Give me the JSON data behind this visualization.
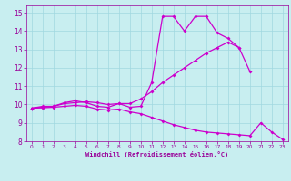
{
  "bg_color": "#c8eef0",
  "line_color": "#cc00cc",
  "grid_color": "#a0d8e0",
  "xlabel": "Windchill (Refroidissement éolien,°C)",
  "xlabel_color": "#990099",
  "tick_color": "#990099",
  "xlim": [
    -0.5,
    23.5
  ],
  "ylim": [
    8,
    15.4
  ],
  "yticks": [
    8,
    9,
    10,
    11,
    12,
    13,
    14,
    15
  ],
  "xticks": [
    0,
    1,
    2,
    3,
    4,
    5,
    6,
    7,
    8,
    9,
    10,
    11,
    12,
    13,
    14,
    15,
    16,
    17,
    18,
    19,
    20,
    21,
    22,
    23
  ],
  "line1_x": [
    0,
    1,
    2,
    3,
    4,
    5,
    6,
    7,
    8,
    9,
    10,
    11,
    12,
    13,
    14,
    15,
    16,
    17,
    18,
    19,
    20
  ],
  "line1_y": [
    9.8,
    9.9,
    9.9,
    10.1,
    10.2,
    10.1,
    9.9,
    9.85,
    10.05,
    9.85,
    9.9,
    11.2,
    14.8,
    14.8,
    14.0,
    14.8,
    14.8,
    13.9,
    13.6,
    13.1,
    11.8
  ],
  "line2_x": [
    0,
    1,
    2,
    3,
    4,
    5,
    6,
    7,
    8,
    9,
    10,
    11,
    12,
    13,
    14,
    15,
    16,
    17,
    18,
    19
  ],
  "line2_y": [
    9.8,
    9.85,
    9.9,
    10.05,
    10.1,
    10.15,
    10.1,
    10.0,
    10.05,
    10.05,
    10.3,
    10.7,
    11.2,
    11.6,
    12.0,
    12.4,
    12.8,
    13.1,
    13.4,
    13.1
  ],
  "line3_x": [
    0,
    1,
    2,
    3,
    4,
    5,
    6,
    7,
    8,
    9,
    10,
    11,
    12,
    13,
    14,
    15,
    16,
    17,
    18,
    19,
    20,
    21,
    22,
    23
  ],
  "line3_y": [
    9.8,
    9.82,
    9.85,
    9.9,
    9.95,
    9.9,
    9.75,
    9.7,
    9.75,
    9.6,
    9.5,
    9.3,
    9.1,
    8.9,
    8.75,
    8.6,
    8.5,
    8.45,
    8.4,
    8.35,
    8.3,
    9.0,
    8.5,
    8.1
  ]
}
